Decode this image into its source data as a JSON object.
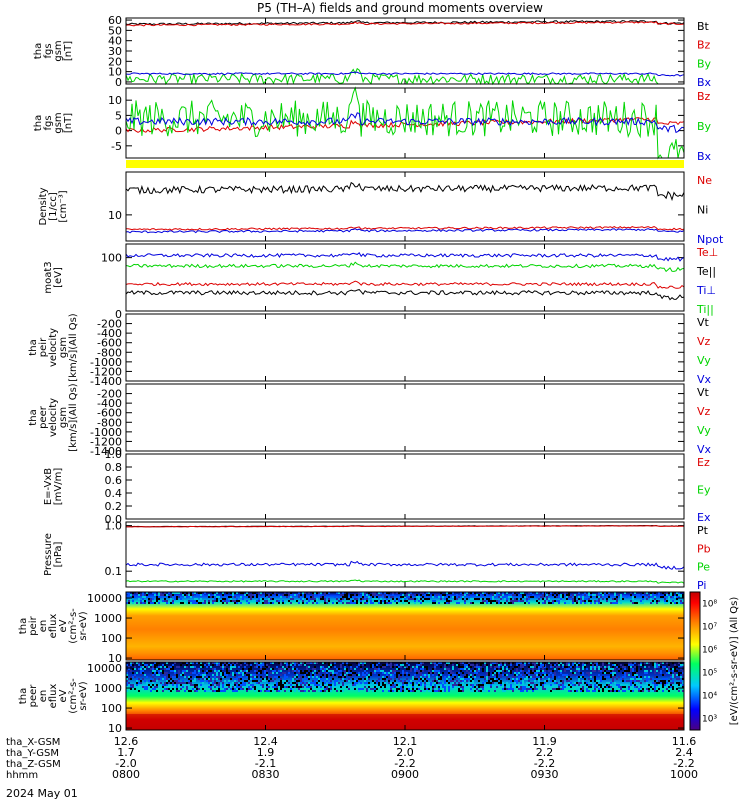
{
  "title": "P5 (TH–A) fields and ground moments overview",
  "date_label": "2024 May 01",
  "colors": {
    "black": "#000000",
    "red": "#dd0000",
    "green": "#00d400",
    "blue": "#0000dd",
    "yellow": "#ffff00"
  },
  "ephemeris": [
    {
      "label": "tha_X-GSM",
      "values": [
        "12.6",
        "12.4",
        "12.1",
        "11.9",
        "11.6"
      ]
    },
    {
      "label": "tha_Y-GSM",
      "values": [
        "1.7",
        "1.9",
        "2.0",
        "2.2",
        "2.4"
      ]
    },
    {
      "label": "tha_Z-GSM",
      "values": [
        "-2.0",
        "-2.1",
        "-2.2",
        "-2.2",
        "-2.2"
      ]
    },
    {
      "label": "hhmm",
      "values": [
        "0800",
        "0830",
        "0900",
        "0930",
        "1000"
      ]
    }
  ],
  "colorbar": {
    "label": "[eV/(cm²-s-sr-eV)] (All Qs)",
    "ticks": [
      "10³",
      "10⁴",
      "10⁵",
      "10⁶",
      "10⁷",
      "10⁸"
    ]
  },
  "chart_data": [
    {
      "type": "line",
      "id": "fgs",
      "ylabel": [
        "tha",
        "fgs",
        "gsm",
        "[nT]"
      ],
      "ylim": [
        -2,
        62
      ],
      "ticks": [
        "0",
        "10",
        "20",
        "30",
        "40",
        "50",
        "60"
      ],
      "tickvals": [
        0,
        10,
        20,
        30,
        40,
        50,
        60
      ],
      "series": [
        {
          "name": "Bt",
          "color": "black",
          "mean": 56,
          "trend": 3,
          "noise": 1
        },
        {
          "name": "Bz",
          "color": "red",
          "mean": 55,
          "trend": 3,
          "noise": 0.8
        },
        {
          "name": "By",
          "color": "green",
          "mean": 3,
          "trend": 0,
          "noise": 5
        },
        {
          "name": "Bx",
          "color": "blue",
          "mean": 8,
          "trend": 0,
          "noise": 0.8
        }
      ]
    },
    {
      "type": "line",
      "id": "fgs-zoom",
      "ylabel": [
        "tha",
        "fgs",
        "gsm",
        "[nT]"
      ],
      "ylim": [
        -9,
        14
      ],
      "ticks": [
        "-5",
        "0",
        "5",
        "10"
      ],
      "tickvals": [
        -5,
        0,
        5,
        10
      ],
      "series": [
        {
          "name": "Bz",
          "color": "red",
          "mean": 0,
          "trend": 4,
          "noise": 0.8
        },
        {
          "name": "By",
          "color": "green",
          "mean": 4,
          "trend": 0,
          "noise": 6
        },
        {
          "name": "Bx",
          "color": "blue",
          "mean": 3,
          "trend": 0,
          "noise": 1.2
        }
      ]
    },
    {
      "type": "line",
      "id": "density",
      "ylabel": [
        "Density",
        "[1/cc]",
        "[cm⁻³]"
      ],
      "ylim": [
        4,
        45
      ],
      "log": true,
      "ticks": [
        "10"
      ],
      "tickvals": [
        10
      ],
      "series": [
        {
          "name": "Ne",
          "color": "red",
          "mean": 6,
          "trend": 0.5,
          "noise": 0.2
        },
        {
          "name": "Ni",
          "color": "black",
          "mean": 24,
          "trend": 2,
          "noise": 3
        },
        {
          "name": "Npot",
          "color": "blue",
          "mean": 5.5,
          "trend": 0.5,
          "noise": 0.2
        }
      ]
    },
    {
      "type": "line",
      "id": "temperature",
      "ylabel": [
        "moat3",
        "[eV]"
      ],
      "ylim": [
        10,
        180
      ],
      "log": true,
      "ticks": [
        "100"
      ],
      "tickvals": [
        100
      ],
      "series": [
        {
          "name": "Te⊥",
          "color": "red",
          "mean": 32,
          "trend": 0,
          "noise": 2
        },
        {
          "name": "Te||",
          "color": "black",
          "mean": 22,
          "trend": 0,
          "noise": 2
        },
        {
          "name": "Ti⊥",
          "color": "blue",
          "mean": 110,
          "trend": 0,
          "noise": 8
        },
        {
          "name": "Ti||",
          "color": "green",
          "mean": 70,
          "trend": 0,
          "noise": 5
        }
      ]
    },
    {
      "type": "line",
      "id": "peir-velocity",
      "ylabel": [
        "tha",
        "peir",
        "velocity",
        "gsm",
        "[km/s](All Qs)"
      ],
      "ylim": [
        -1400,
        0
      ],
      "ticks": [
        "0",
        "-200",
        "-400",
        "-600",
        "-800",
        "-1000",
        "-1200",
        "-1400"
      ],
      "tickvals": [
        0,
        -200,
        -400,
        -600,
        -800,
        -1000,
        -1200,
        -1400
      ],
      "series": [
        {
          "name": "Vt",
          "color": "black"
        },
        {
          "name": "Vz",
          "color": "red"
        },
        {
          "name": "Vy",
          "color": "green"
        },
        {
          "name": "Vx",
          "color": "blue"
        }
      ]
    },
    {
      "type": "line",
      "id": "peer-velocity",
      "ylabel": [
        "tha",
        "peer",
        "velocity",
        "gsm",
        "[km/s](All Qs)"
      ],
      "ylim": [
        -1400,
        0
      ],
      "ticks": [
        "-200",
        "-400",
        "-600",
        "-800",
        "-1000",
        "-1200",
        "-1400"
      ],
      "tickvals": [
        -200,
        -400,
        -600,
        -800,
        -1000,
        -1200,
        -1400
      ],
      "series": [
        {
          "name": "Vt",
          "color": "black"
        },
        {
          "name": "Vz",
          "color": "red"
        },
        {
          "name": "Vy",
          "color": "green"
        },
        {
          "name": "Vx",
          "color": "blue"
        }
      ]
    },
    {
      "type": "line",
      "id": "efield",
      "ylabel": [
        "E=-VxB",
        "[mV/m]"
      ],
      "ylim": [
        0,
        1
      ],
      "ticks": [
        "0.0",
        "0.2",
        "0.4",
        "0.6",
        "0.8",
        "1.0"
      ],
      "tickvals": [
        0,
        0.2,
        0.4,
        0.6,
        0.8,
        1.0
      ],
      "series": [
        {
          "name": "Ez",
          "color": "red"
        },
        {
          "name": "Ey",
          "color": "green"
        },
        {
          "name": "Ex",
          "color": "blue"
        }
      ]
    },
    {
      "type": "line",
      "id": "pressure",
      "ylabel": [
        "Pressure",
        "[nPa]"
      ],
      "ylim": [
        0.045,
        1.2
      ],
      "log": true,
      "ticks": [
        "0.1",
        "1.0"
      ],
      "tickvals": [
        0.1,
        1.0
      ],
      "series": [
        {
          "name": "Pt",
          "color": "black",
          "mean": 0.95,
          "trend": 0.05,
          "noise": 0.01
        },
        {
          "name": "Pb",
          "color": "red",
          "mean": 0.94,
          "trend": 0.05,
          "noise": 0.01
        },
        {
          "name": "Pe",
          "color": "green",
          "mean": 0.06,
          "trend": 0,
          "noise": 0.002
        },
        {
          "name": "Pi",
          "color": "blue",
          "mean": 0.14,
          "trend": 0,
          "noise": 0.01
        }
      ]
    },
    {
      "type": "heatmap",
      "id": "peir-spec",
      "ylabel": [
        "tha",
        "peir",
        "en",
        "eflux",
        "eV",
        "(cm²-s-",
        "sr-eV)"
      ],
      "ylim": [
        8,
        20000
      ],
      "log": true,
      "ticks": [
        "10",
        "100",
        "1000",
        "10000"
      ],
      "tickvals": [
        10,
        100,
        1000,
        10000
      ]
    },
    {
      "type": "heatmap",
      "id": "peer-spec",
      "ylabel": [
        "tha",
        "peer",
        "en",
        "eflux",
        "eV",
        "(cm²-s-",
        "sr-eV)"
      ],
      "ylim": [
        8,
        20000
      ],
      "log": true,
      "ticks": [
        "10",
        "100",
        "1000",
        "10000"
      ],
      "tickvals": [
        10,
        100,
        1000,
        10000
      ]
    }
  ]
}
